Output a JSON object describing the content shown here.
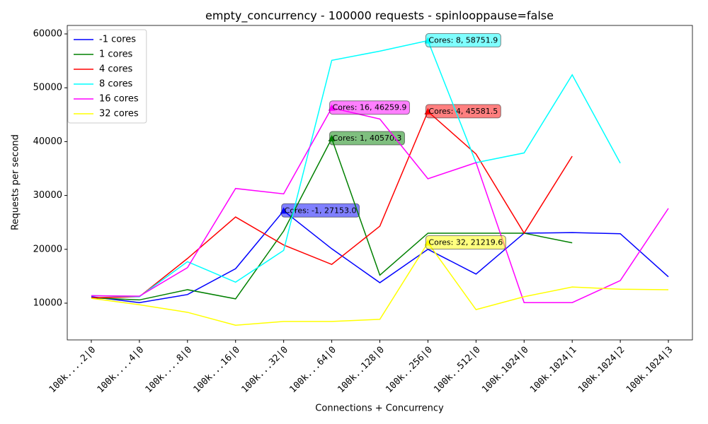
{
  "chart_data": {
    "type": "line",
    "title": "empty_concurrency - 100000 requests - spinlooppause=false",
    "x_label": "Connections + Concurrency",
    "y_label": "Requests per second",
    "categories": [
      "100k....2|0",
      "100k....4|0",
      "100k....8|0",
      "100k...16|0",
      "100k...32|0",
      "100k...64|0",
      "100k..128|0",
      "100k..256|0",
      "100k..512|0",
      "100k.1024|0",
      "100k.1024|1",
      "100k.1024|2",
      "100k.1024|3"
    ],
    "ylim": [
      3176,
      61575
    ],
    "yticks": [
      10000,
      20000,
      30000,
      40000,
      50000,
      60000
    ],
    "legend": "upper left",
    "series": [
      {
        "name": "-1 cores",
        "color": "#0000ff",
        "values": [
          11200,
          10100,
          11600,
          16400,
          27153.0,
          20100,
          13800,
          20000,
          15400,
          23000,
          23100,
          22900,
          14900
        ],
        "annotation": "Cores: -1, 27153.0"
      },
      {
        "name": "1 cores",
        "color": "#008000",
        "values": [
          11000,
          10600,
          12500,
          10800,
          23400,
          40570.3,
          15200,
          23000,
          23000,
          23000,
          21200,
          null,
          null
        ],
        "annotation": "Cores: 1, 40570.3"
      },
      {
        "name": "4 cores",
        "color": "#ff0000",
        "values": [
          11000,
          11200,
          18300,
          26000,
          20800,
          17200,
          24300,
          45581.5,
          37700,
          23000,
          37300,
          null,
          null
        ],
        "annotation": "Cores: 4, 45581.5"
      },
      {
        "name": "8 cores",
        "color": "#00ffff",
        "values": [
          11400,
          11200,
          17700,
          13900,
          19800,
          55100,
          56800,
          58751.9,
          36100,
          37900,
          52400,
          36000,
          null
        ],
        "annotation": "Cores: 8, 58751.9"
      },
      {
        "name": "16 cores",
        "color": "#ff00ff",
        "values": [
          11400,
          11300,
          16600,
          31300,
          30300,
          46259.9,
          44200,
          33100,
          36100,
          10100,
          10100,
          14200,
          27600
        ],
        "annotation": "Cores: 16, 46259.9"
      },
      {
        "name": "32 cores",
        "color": "#ffff00",
        "values": [
          10900,
          9700,
          8300,
          5900,
          6600,
          6600,
          7000,
          21219.6,
          8800,
          11200,
          13000,
          12600,
          12500
        ],
        "annotation": "Cores: 32, 21219.6"
      }
    ]
  }
}
